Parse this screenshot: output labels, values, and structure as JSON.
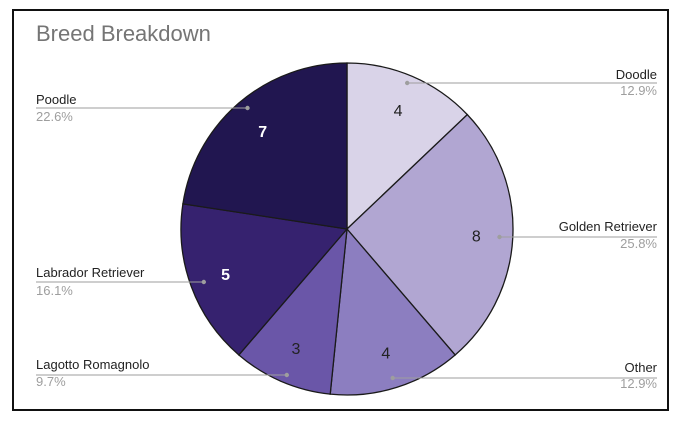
{
  "chart_data": {
    "type": "pie",
    "title": "Breed Breakdown",
    "slices": [
      {
        "label": "Doodle",
        "value": 4,
        "percent": "12.9%",
        "color": "#d9d3e8",
        "text_color": "#222222",
        "bold": false
      },
      {
        "label": "Golden Retriever",
        "value": 8,
        "percent": "25.8%",
        "color": "#b1a6d2",
        "text_color": "#222222",
        "bold": false
      },
      {
        "label": "Other",
        "value": 4,
        "percent": "12.9%",
        "color": "#8c7ec0",
        "text_color": "#222222",
        "bold": false
      },
      {
        "label": "Lagotto Romagnolo",
        "value": 3,
        "percent": "9.7%",
        "color": "#6a56a8",
        "text_color": "#222222",
        "bold": false
      },
      {
        "label": "Labrador Retriever",
        "value": 5,
        "percent": "16.1%",
        "color": "#36226f",
        "text_color": "#ffffff",
        "bold": true
      },
      {
        "label": "Poodle",
        "value": 7,
        "percent": "22.6%",
        "color": "#211650",
        "text_color": "#ffffff",
        "bold": true
      }
    ],
    "start_angle_deg": 0,
    "direction": "clockwise",
    "legend": "none"
  }
}
